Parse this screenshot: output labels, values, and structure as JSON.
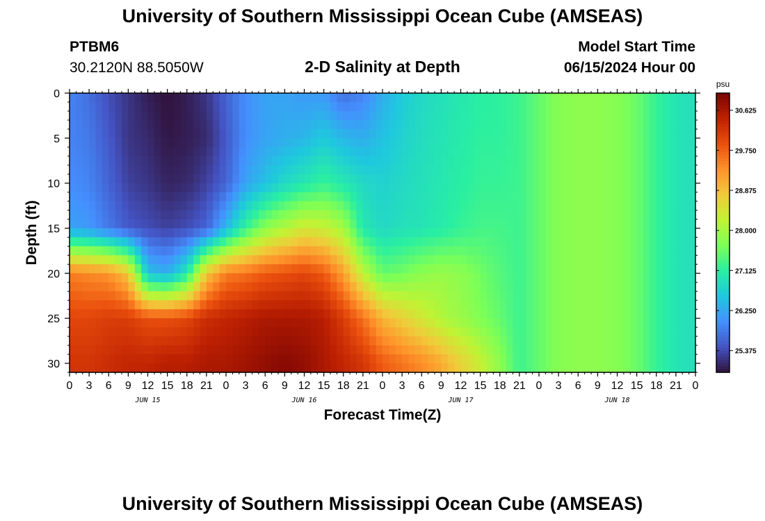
{
  "header": {
    "title": "University of Southern Mississippi Ocean Cube (AMSEAS)",
    "station_id": "PTBM6",
    "station_coords": "30.2120N  88.5050W",
    "model_start_label": "Model Start Time",
    "model_start_value": "06/15/2024 Hour 00"
  },
  "footer": {
    "title": "University of Southern Mississippi Ocean Cube (AMSEAS)"
  },
  "chart_data": {
    "type": "heatmap",
    "title": "2-D Salinity at Depth",
    "xlabel": "Forecast Time(Z)",
    "ylabel": "Depth (ft)",
    "x_range_hours": [
      0,
      96
    ],
    "x_step_hours": 3,
    "x_tick_labels": [
      "0",
      "3",
      "6",
      "9",
      "12",
      "15",
      "18",
      "21",
      "0",
      "3",
      "6",
      "9",
      "12",
      "15",
      "18",
      "21",
      "0",
      "3",
      "6",
      "9",
      "12",
      "15",
      "18",
      "21",
      "0",
      "3",
      "6",
      "9",
      "12",
      "15",
      "18",
      "21",
      "0"
    ],
    "day_labels": [
      {
        "hour": 12,
        "label": "JUN 15"
      },
      {
        "hour": 36,
        "label": "JUN 16"
      },
      {
        "hour": 60,
        "label": "JUN 17"
      },
      {
        "hour": 84,
        "label": "JUN 18"
      }
    ],
    "y_range_ft": [
      0,
      31
    ],
    "y_ticks": [
      0,
      5,
      10,
      15,
      20,
      25,
      30
    ],
    "y_tick_labels": [
      "0",
      "5",
      "10",
      "15",
      "20",
      "25",
      "30"
    ],
    "colorbar": {
      "unit": "psu",
      "min": 24.9,
      "max": 31.0,
      "ticks": [
        30.625,
        29.75,
        28.875,
        28.0,
        27.125,
        26.25,
        25.375
      ],
      "tick_labels": [
        "30.625",
        "29.750",
        "28.875",
        "28.000",
        "27.125",
        "26.250",
        "25.375"
      ]
    },
    "grid_times_hours": [
      0,
      3,
      6,
      9,
      12,
      15,
      18,
      21,
      24,
      27,
      30,
      33,
      36,
      39,
      42,
      45,
      48,
      51,
      54,
      57,
      60,
      63,
      66,
      69,
      72,
      75,
      78,
      81,
      84,
      87,
      90,
      93,
      96
    ],
    "profile_depths_ft": [
      0,
      5,
      10,
      15,
      20,
      25,
      30
    ],
    "salinity_profiles_psu": [
      [
        25.9,
        25.9,
        26.0,
        26.2,
        29.5,
        30.0,
        30.2
      ],
      [
        25.7,
        25.8,
        25.9,
        26.1,
        29.4,
        30.0,
        30.2
      ],
      [
        25.4,
        25.5,
        25.6,
        25.8,
        29.3,
        30.1,
        30.3
      ],
      [
        25.2,
        25.2,
        25.3,
        25.5,
        28.8,
        30.1,
        30.4
      ],
      [
        25.0,
        25.1,
        25.2,
        25.4,
        26.5,
        29.9,
        30.4
      ],
      [
        24.9,
        24.95,
        25.05,
        25.3,
        26.3,
        29.9,
        30.5
      ],
      [
        25.0,
        25.0,
        25.1,
        25.4,
        27.0,
        30.0,
        30.5
      ],
      [
        25.2,
        25.1,
        25.3,
        25.6,
        28.8,
        30.3,
        30.6
      ],
      [
        25.6,
        25.5,
        25.6,
        26.4,
        29.5,
        30.4,
        30.6
      ],
      [
        26.0,
        26.0,
        26.2,
        27.2,
        29.6,
        30.5,
        30.7
      ],
      [
        26.2,
        26.2,
        26.5,
        27.8,
        29.8,
        30.6,
        30.8
      ],
      [
        26.2,
        26.3,
        26.8,
        28.1,
        29.9,
        30.6,
        30.9
      ],
      [
        26.1,
        26.4,
        27.0,
        28.4,
        30.0,
        30.6,
        30.8
      ],
      [
        26.1,
        26.6,
        27.2,
        28.3,
        29.8,
        30.5,
        30.6
      ],
      [
        25.7,
        26.4,
        27.0,
        28.0,
        29.2,
        30.1,
        30.4
      ],
      [
        25.9,
        26.3,
        26.8,
        27.0,
        28.2,
        29.6,
        30.2
      ],
      [
        26.3,
        26.5,
        26.7,
        26.8,
        27.5,
        29.0,
        29.8
      ],
      [
        26.6,
        26.7,
        26.8,
        26.9,
        27.6,
        28.7,
        29.6
      ],
      [
        26.8,
        26.85,
        26.9,
        26.95,
        27.8,
        28.4,
        29.4
      ],
      [
        26.9,
        26.95,
        27.0,
        27.05,
        27.9,
        28.1,
        29.1
      ],
      [
        27.0,
        27.05,
        27.1,
        27.2,
        27.8,
        27.9,
        28.7
      ],
      [
        27.1,
        27.15,
        27.2,
        27.3,
        27.6,
        27.7,
        28.3
      ],
      [
        27.15,
        27.15,
        27.2,
        27.3,
        27.4,
        27.5,
        27.8
      ],
      [
        27.25,
        27.25,
        27.25,
        27.25,
        27.25,
        27.25,
        27.25
      ],
      [
        27.5,
        27.5,
        27.5,
        27.5,
        27.5,
        27.5,
        27.5
      ],
      [
        27.75,
        27.75,
        27.75,
        27.75,
        27.75,
        27.75,
        27.75
      ],
      [
        27.8,
        27.8,
        27.8,
        27.8,
        27.8,
        27.8,
        27.8
      ],
      [
        27.8,
        27.8,
        27.8,
        27.8,
        27.8,
        27.8,
        27.8
      ],
      [
        27.75,
        27.75,
        27.75,
        27.75,
        27.75,
        27.75,
        27.75
      ],
      [
        27.55,
        27.55,
        27.55,
        27.55,
        27.55,
        27.55,
        27.55
      ],
      [
        27.2,
        27.2,
        27.2,
        27.2,
        27.2,
        27.2,
        27.2
      ],
      [
        26.95,
        26.95,
        26.95,
        26.95,
        26.95,
        26.95,
        26.95
      ],
      [
        26.9,
        26.9,
        26.9,
        26.9,
        26.9,
        26.9,
        26.9
      ]
    ],
    "colors": {
      "axis": "#000000",
      "background": "#ffffff",
      "colormap": [
        "#30123b",
        "#4454c4",
        "#4490fe",
        "#1fc8de",
        "#29efa2",
        "#7dff56",
        "#c1f334",
        "#f1ca3a",
        "#fe922a",
        "#ea4f0d",
        "#be2102",
        "#7a0403"
      ]
    }
  }
}
